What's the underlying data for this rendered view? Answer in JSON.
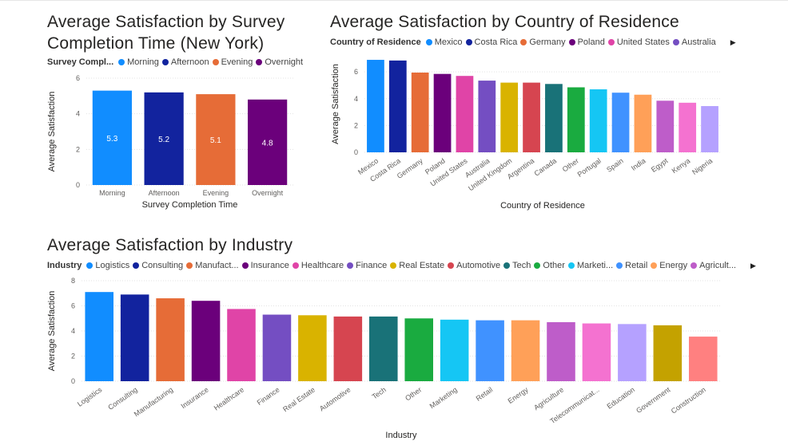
{
  "chart_data": [
    {
      "id": "time",
      "type": "bar",
      "title": "Average Satisfaction by Survey Completion Time (New York)",
      "title_lines": [
        "Average Satisfaction by Survey",
        "Completion Time (New York)"
      ],
      "legend_title": "Survey Compl...",
      "categories": [
        "Morning",
        "Afternoon",
        "Evening",
        "Overnight"
      ],
      "values": [
        5.3,
        5.2,
        5.1,
        4.8
      ],
      "data_labels": [
        "5.3",
        "5.2",
        "5.1",
        "4.8"
      ],
      "colors": [
        "#118DFF",
        "#12239E",
        "#E66C37",
        "#6B007B"
      ],
      "xlabel": "Survey Completion Time",
      "ylabel": "Average Satisfaction",
      "ylim": [
        0,
        6
      ],
      "yticks": [
        0,
        2,
        4,
        6
      ],
      "grid": true,
      "legend_position": "top-left"
    },
    {
      "id": "country",
      "type": "bar",
      "title": "Average Satisfaction by Country of Residence",
      "legend_title": "Country of Residence",
      "legend_items": [
        "Mexico",
        "Costa Rica",
        "Germany",
        "Poland",
        "United States",
        "Australia"
      ],
      "categories": [
        "Mexico",
        "Costa Rica",
        "Germany",
        "Poland",
        "United States",
        "Australia",
        "United Kingdom",
        "Argentina",
        "Canada",
        "Other",
        "Portugal",
        "Spain",
        "India",
        "Egypt",
        "Kenya",
        "Nigeria"
      ],
      "values": [
        6.9,
        6.85,
        5.95,
        5.85,
        5.7,
        5.35,
        5.2,
        5.2,
        5.1,
        4.85,
        4.7,
        4.45,
        4.3,
        3.85,
        3.7,
        3.45
      ],
      "colors": [
        "#118DFF",
        "#12239E",
        "#E66C37",
        "#6B007B",
        "#E044A7",
        "#744EC2",
        "#D9B300",
        "#D64550",
        "#197278",
        "#1AAB40",
        "#15C6F4",
        "#4092FF",
        "#FFA058",
        "#BE5DC9",
        "#F472D0",
        "#B5A1FF"
      ],
      "xlabel": "Country of Residence",
      "ylabel": "Average Satisfaction",
      "ylim": [
        0,
        7.2
      ],
      "yticks": [
        0,
        2,
        4,
        6
      ],
      "grid": true,
      "legend_position": "top-left"
    },
    {
      "id": "industry",
      "type": "bar",
      "title": "Average Satisfaction by Industry",
      "legend_title": "Industry",
      "legend_items": [
        "Logistics",
        "Consulting",
        "Manufact...",
        "Insurance",
        "Healthcare",
        "Finance",
        "Real Estate",
        "Automotive",
        "Tech",
        "Other",
        "Marketi...",
        "Retail",
        "Energy",
        "Agricult..."
      ],
      "categories": [
        "Logistics",
        "Consulting",
        "Manufacturing",
        "Insurance",
        "Healthcare",
        "Finance",
        "Real Estate",
        "Automotive",
        "Tech",
        "Other",
        "Marketing",
        "Retail",
        "Energy",
        "Agriculture",
        "Telecommunicat...",
        "Education",
        "Government",
        "Construction"
      ],
      "values": [
        7.1,
        6.9,
        6.6,
        6.4,
        5.75,
        5.3,
        5.25,
        5.15,
        5.15,
        5.0,
        4.9,
        4.85,
        4.85,
        4.7,
        4.6,
        4.55,
        4.45,
        3.55
      ],
      "colors": [
        "#118DFF",
        "#12239E",
        "#E66C37",
        "#6B007B",
        "#E044A7",
        "#744EC2",
        "#D9B300",
        "#D64550",
        "#197278",
        "#1AAB40",
        "#15C6F4",
        "#4092FF",
        "#FFA058",
        "#BE5DC9",
        "#F472D0",
        "#B5A1FF",
        "#C4A200",
        "#FF8080"
      ],
      "xlabel": "Industry",
      "ylabel": "Average Satisfaction",
      "ylim": [
        0,
        8
      ],
      "yticks": [
        0,
        2,
        4,
        6,
        8
      ],
      "grid": true,
      "legend_position": "top-left"
    }
  ]
}
